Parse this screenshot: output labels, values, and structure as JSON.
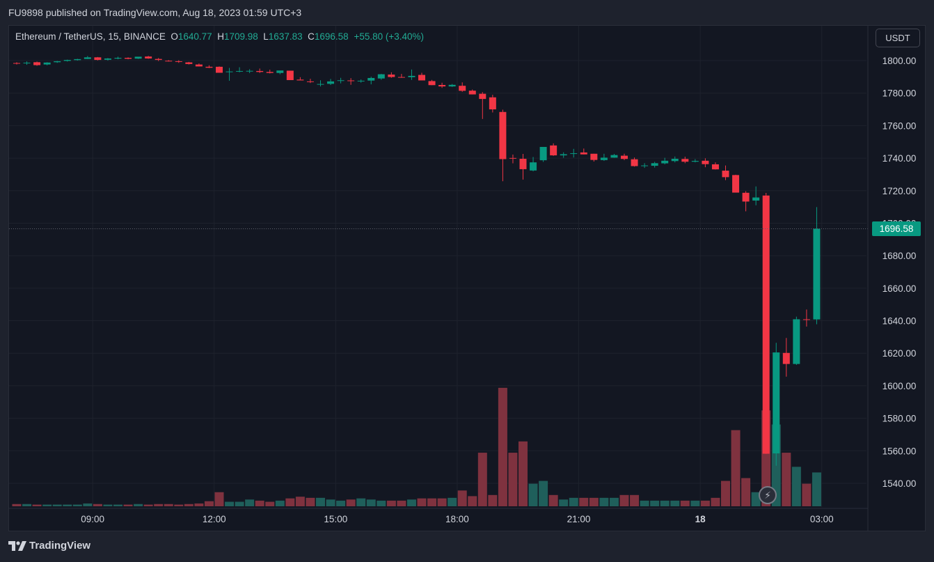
{
  "header": {
    "published_text": "FU9898 published on TradingView.com, Aug 18, 2023 01:59 UTC+3"
  },
  "legend": {
    "symbol": "Ethereum / TetherUS, 15, BINANCE",
    "o_label": "O",
    "o_value": "1640.77",
    "h_label": "H",
    "h_value": "1709.98",
    "l_label": "L",
    "l_value": "1637.83",
    "c_label": "C",
    "c_value": "1696.58",
    "change": "+55.80 (+3.40%)"
  },
  "currency_button": "USDT",
  "last_price_tag": "1696.58",
  "brand": {
    "name": "TradingView",
    "icon": "tradingview-logo-icon"
  },
  "colors": {
    "up": "#089981",
    "down": "#f23645",
    "vol_up": "#1f5f5b",
    "vol_down": "#7f323f",
    "background": "#131722",
    "grid": "#1e222d"
  },
  "chart_data": {
    "type": "candlestick",
    "interval": "15",
    "ylim": [
      1525,
      1808
    ],
    "y_ticks": [
      "1800.00",
      "1780.00",
      "1760.00",
      "1740.00",
      "1720.00",
      "1700.00",
      "1680.00",
      "1660.00",
      "1640.00",
      "1620.00",
      "1600.00",
      "1580.00",
      "1560.00",
      "1540.00"
    ],
    "y_tick_values": [
      1800,
      1780,
      1760,
      1740,
      1720,
      1700,
      1680,
      1660,
      1640,
      1620,
      1600,
      1580,
      1560,
      1540
    ],
    "x_ticks": [
      {
        "label": "09:00",
        "index": 7.5
      },
      {
        "label": "12:00",
        "index": 19.5
      },
      {
        "label": "15:00",
        "index": 31.5
      },
      {
        "label": "18:00",
        "index": 43.5
      },
      {
        "label": "21:00",
        "index": 55.5
      },
      {
        "label": "18",
        "index": 67.5
      },
      {
        "label": "03:00",
        "index": 79.5
      }
    ],
    "last_price": 1696.58,
    "volume_max": 4.2,
    "candles": [
      [
        1798.5,
        1799.0,
        1797.6,
        1798.1,
        0.08
      ],
      [
        1798.4,
        1799.5,
        1797.4,
        1798.7,
        0.08
      ],
      [
        1799.0,
        1799.4,
        1796.8,
        1797.2,
        0.06
      ],
      [
        1797.6,
        1799.0,
        1797.1,
        1798.8,
        0.06
      ],
      [
        1799.0,
        1799.8,
        1798.6,
        1799.6,
        0.06
      ],
      [
        1799.8,
        1800.6,
        1799.4,
        1800.4,
        0.06
      ],
      [
        1800.3,
        1801.1,
        1800.0,
        1800.9,
        0.06
      ],
      [
        1801.0,
        1802.8,
        1800.9,
        1802.0,
        0.1
      ],
      [
        1802.0,
        1802.2,
        1800.1,
        1800.4,
        0.08
      ],
      [
        1800.5,
        1801.6,
        1800.0,
        1801.3,
        0.06
      ],
      [
        1801.2,
        1802.4,
        1800.8,
        1801.7,
        0.06
      ],
      [
        1801.7,
        1802.0,
        1800.8,
        1801.1,
        0.06
      ],
      [
        1801.2,
        1802.3,
        1801.0,
        1802.4,
        0.08
      ],
      [
        1802.5,
        1802.9,
        1801.1,
        1801.3,
        0.06
      ],
      [
        1801.0,
        1801.6,
        1799.7,
        1800.4,
        0.08
      ],
      [
        1799.9,
        1800.3,
        1799.4,
        1799.6,
        0.08
      ],
      [
        1799.6,
        1800.2,
        1798.6,
        1799.3,
        0.06
      ],
      [
        1798.9,
        1799.2,
        1797.6,
        1797.9,
        0.08
      ],
      [
        1797.6,
        1798.2,
        1796.4,
        1796.4,
        0.1
      ],
      [
        1796.2,
        1797.1,
        1795.4,
        1795.6,
        0.18
      ],
      [
        1796.2,
        1796.4,
        1792.5,
        1792.5,
        0.5
      ],
      [
        1793.0,
        1795.5,
        1787.6,
        1793.3,
        0.16
      ],
      [
        1793.4,
        1795.9,
        1792.8,
        1793.6,
        0.16
      ],
      [
        1793.4,
        1794.7,
        1792.3,
        1793.7,
        0.24
      ],
      [
        1793.6,
        1795.1,
        1792.4,
        1793.0,
        0.2
      ],
      [
        1793.0,
        1794.4,
        1792.1,
        1792.4,
        0.16
      ],
      [
        1792.4,
        1793.8,
        1791.6,
        1793.9,
        0.2
      ],
      [
        1793.8,
        1793.8,
        1788.0,
        1788.0,
        0.28
      ],
      [
        1788.3,
        1789.8,
        1787.8,
        1787.8,
        0.34
      ],
      [
        1787.2,
        1788.8,
        1786.2,
        1786.8,
        0.3
      ],
      [
        1785.6,
        1787.9,
        1784.1,
        1785.6,
        0.3
      ],
      [
        1785.7,
        1788.7,
        1785.0,
        1787.2,
        0.24
      ],
      [
        1787.7,
        1789.4,
        1786.0,
        1787.9,
        0.2
      ],
      [
        1787.8,
        1789.2,
        1785.1,
        1787.4,
        0.24
      ],
      [
        1787.3,
        1788.4,
        1786.4,
        1787.6,
        0.28
      ],
      [
        1787.7,
        1790.1,
        1785.4,
        1789.3,
        0.24
      ],
      [
        1789.0,
        1791.8,
        1788.2,
        1791.6,
        0.2
      ],
      [
        1791.4,
        1792.8,
        1789.4,
        1789.9,
        0.2
      ],
      [
        1789.9,
        1791.8,
        1789.4,
        1789.6,
        0.2
      ],
      [
        1789.8,
        1794.5,
        1788.1,
        1790.6,
        0.24
      ],
      [
        1791.2,
        1792.5,
        1787.8,
        1787.8,
        0.28
      ],
      [
        1787.4,
        1788.1,
        1784.9,
        1784.9,
        0.28
      ],
      [
        1785.0,
        1786.4,
        1783.2,
        1784.1,
        0.28
      ],
      [
        1784.1,
        1785.6,
        1783.8,
        1785.1,
        0.3
      ],
      [
        1784.5,
        1786.6,
        1780.8,
        1781.4,
        0.56
      ],
      [
        1781.5,
        1782.2,
        1779.2,
        1779.2,
        0.36
      ],
      [
        1779.6,
        1780.6,
        1764.1,
        1776.4,
        1.9
      ],
      [
        1777.4,
        1779.0,
        1768.1,
        1770.0,
        0.4
      ],
      [
        1768.4,
        1769.8,
        1725.8,
        1739.4,
        4.2
      ],
      [
        1740.1,
        1742.2,
        1736.8,
        1739.8,
        1.9
      ],
      [
        1739.6,
        1742.6,
        1726.8,
        1733.2,
        2.3
      ],
      [
        1732.4,
        1740.7,
        1731.9,
        1737.4,
        0.8
      ],
      [
        1738.7,
        1745.6,
        1737.7,
        1746.9,
        0.9
      ],
      [
        1747.8,
        1749.1,
        1741.4,
        1741.7,
        0.4
      ],
      [
        1741.7,
        1743.6,
        1740.2,
        1742.4,
        0.24
      ],
      [
        1742.6,
        1745.7,
        1740.4,
        1743.0,
        0.3
      ],
      [
        1743.5,
        1745.9,
        1742.3,
        1742.3,
        0.3
      ],
      [
        1742.7,
        1742.7,
        1737.9,
        1738.9,
        0.3
      ],
      [
        1738.8,
        1742.7,
        1738.3,
        1740.3,
        0.3
      ],
      [
        1740.3,
        1742.6,
        1740.2,
        1741.9,
        0.3
      ],
      [
        1741.5,
        1742.7,
        1738.8,
        1739.5,
        0.4
      ],
      [
        1739.3,
        1740.4,
        1734.8,
        1735.1,
        0.4
      ],
      [
        1735.2,
        1736.9,
        1734.0,
        1735.5,
        0.2
      ],
      [
        1735.3,
        1737.7,
        1734.2,
        1736.9,
        0.2
      ],
      [
        1736.8,
        1740.2,
        1736.2,
        1738.4,
        0.2
      ],
      [
        1738.2,
        1741.0,
        1737.4,
        1739.6,
        0.2
      ],
      [
        1739.5,
        1740.9,
        1736.9,
        1737.8,
        0.2
      ],
      [
        1737.8,
        1739.4,
        1737.4,
        1738.3,
        0.2
      ],
      [
        1738.4,
        1739.9,
        1734.4,
        1736.3,
        0.2
      ],
      [
        1736.2,
        1737.4,
        1733.0,
        1733.1,
        0.3
      ],
      [
        1732.3,
        1735.5,
        1726.5,
        1728.3,
        0.9
      ],
      [
        1729.6,
        1729.8,
        1719.0,
        1718.8,
        2.7
      ],
      [
        1718.7,
        1719.7,
        1707.3,
        1713.3,
        1.0
      ],
      [
        1713.9,
        1722.6,
        1711.0,
        1715.8,
        0.5
      ],
      [
        1717.0,
        1718.6,
        1558.1,
        1558.2,
        3.4
      ],
      [
        1558.4,
        1626.4,
        1550.8,
        1620.5,
        2.9
      ],
      [
        1620.2,
        1629.4,
        1605.6,
        1613.4,
        1.9
      ],
      [
        1613.4,
        1642.5,
        1612.8,
        1640.9,
        1.4
      ],
      [
        1640.9,
        1646.9,
        1636.4,
        1640.8,
        0.8
      ],
      [
        1640.8,
        1709.9,
        1637.8,
        1696.6,
        1.2
      ]
    ]
  }
}
